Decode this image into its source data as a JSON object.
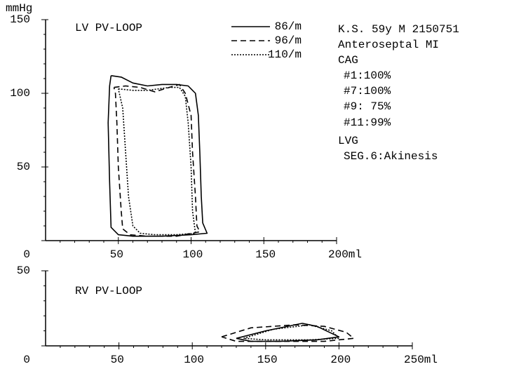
{
  "chart_data": [
    {
      "type": "line",
      "title": "LV PV-LOOP",
      "ylabel": "mmHg",
      "xlim": [
        0,
        200
      ],
      "ylim": [
        0,
        150
      ],
      "xticks": [
        50,
        100,
        150,
        {
          "value": 200,
          "label": "200ml"
        }
      ],
      "yticks": [
        0,
        50,
        100,
        150
      ],
      "xminor": [
        10,
        20,
        30,
        40,
        60,
        70,
        80,
        90,
        110,
        120,
        130,
        140,
        160,
        170,
        180,
        190
      ],
      "yminor": [
        10,
        20,
        30,
        40,
        60,
        70,
        80,
        90,
        110,
        120,
        130,
        140
      ],
      "series": [
        {
          "name": "86/m",
          "color": "#000000",
          "dash": "solid",
          "x": [
            45,
            52,
            60,
            70,
            80,
            90,
            98,
            103,
            105,
            106,
            107,
            108,
            111,
            100,
            80,
            60,
            50,
            45,
            44,
            43,
            44,
            45
          ],
          "values": [
            112,
            111,
            107,
            105,
            106,
            106,
            105,
            100,
            85,
            60,
            30,
            12,
            5,
            4,
            3,
            3,
            4,
            9,
            40,
            80,
            105,
            112
          ]
        },
        {
          "name": "96/m",
          "color": "#000000",
          "dash": "dashed",
          "x": [
            47,
            55,
            65,
            75,
            85,
            92,
            96,
            100,
            101,
            103,
            104,
            106,
            90,
            70,
            58,
            53,
            52,
            50,
            49,
            48,
            47
          ],
          "values": [
            104,
            105,
            104,
            101,
            104,
            106,
            100,
            85,
            60,
            30,
            10,
            6,
            3,
            3,
            4,
            8,
            20,
            50,
            80,
            100,
            104
          ]
        },
        {
          "name": "110/m",
          "color": "#000000",
          "dash": "dotted",
          "x": [
            50,
            60,
            70,
            85,
            92,
            96,
            98,
            100,
            101,
            103,
            90,
            75,
            65,
            60,
            57,
            55,
            53,
            50
          ],
          "values": [
            103,
            102,
            102,
            104,
            104,
            98,
            80,
            50,
            20,
            5,
            4,
            4,
            5,
            10,
            30,
            60,
            90,
            103
          ]
        }
      ],
      "annotations": [
        "K.S. 59y M 2150751",
        "Anteroseptal MI",
        "CAG",
        "#1:100%",
        "#7:100%",
        "#9: 75%",
        "#11:99%",
        "LVG",
        "SEG.6:Akinesis"
      ]
    },
    {
      "type": "line",
      "title": "RV PV-LOOP",
      "xlim": [
        0,
        250
      ],
      "ylim": [
        0,
        50
      ],
      "xticks": [
        50,
        100,
        150,
        200,
        {
          "value": 250,
          "label": "250ml"
        }
      ],
      "yticks": [
        0,
        50
      ],
      "xminor": [
        10,
        20,
        30,
        40,
        60,
        70,
        80,
        90,
        110,
        120,
        130,
        140,
        160,
        170,
        180,
        190,
        210,
        220,
        230,
        240
      ],
      "yminor": [
        10,
        20,
        30,
        40
      ],
      "series": [
        {
          "color": "#000000",
          "dash": "solid",
          "x": [
            130,
            150,
            175,
            185,
            200,
            185,
            160,
            140,
            130
          ],
          "values": [
            5,
            10,
            15,
            13,
            6,
            4,
            3,
            3,
            5
          ]
        },
        {
          "color": "#000000",
          "dash": "dashed",
          "x": [
            120,
            140,
            170,
            190,
            205,
            210,
            190,
            160,
            130,
            120
          ],
          "values": [
            6,
            12,
            14,
            13,
            9,
            5,
            3,
            3,
            3,
            6
          ]
        },
        {
          "color": "#000000",
          "dash": "dotted",
          "x": [
            135,
            155,
            180,
            195,
            200,
            180,
            150,
            135
          ],
          "values": [
            5,
            11,
            14,
            10,
            5,
            4,
            4,
            5
          ]
        }
      ]
    }
  ]
}
